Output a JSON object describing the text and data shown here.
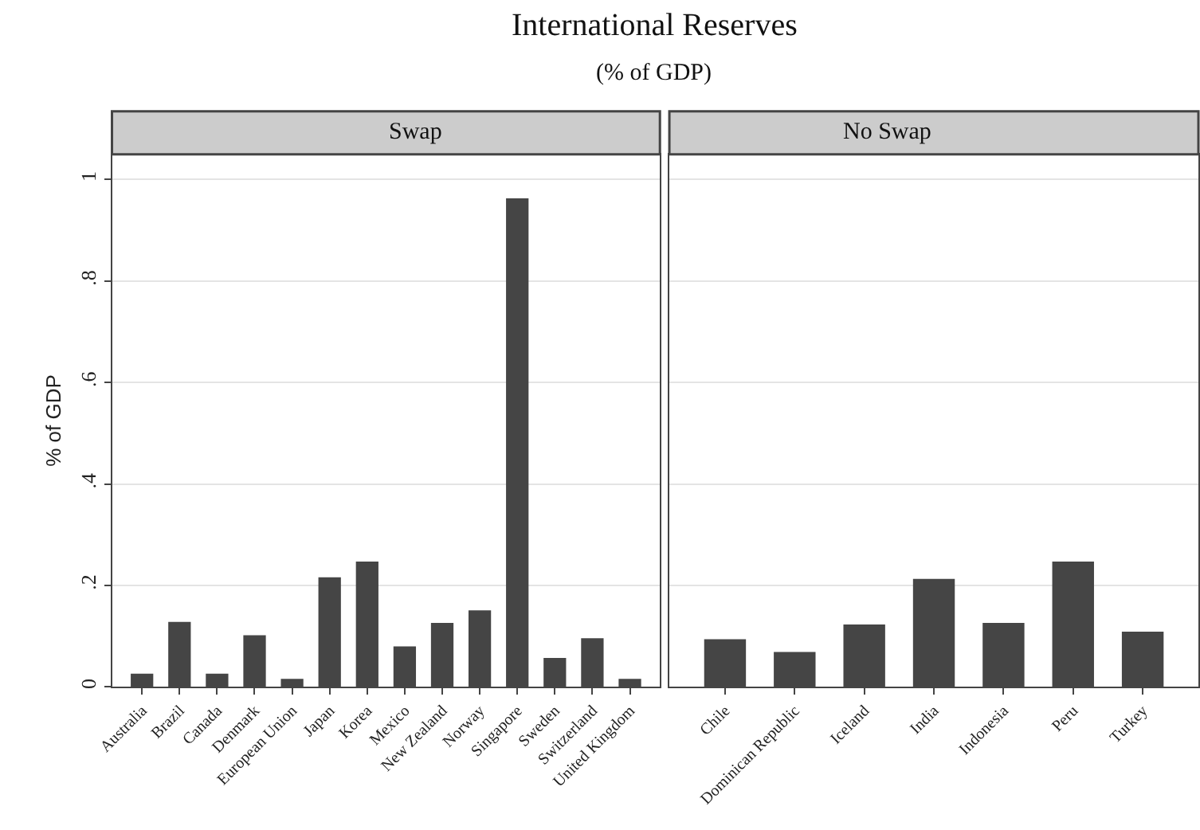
{
  "chart_data": [
    {
      "type": "bar",
      "title": "Swap",
      "ylabel": "% of GDP",
      "annotations": [
        "International Reserves",
        "(% of GDP)"
      ],
      "categories": [
        "Australia",
        "Brazil",
        "Canada",
        "Denmark",
        "European Union",
        "Japan",
        "Korea",
        "Mexico",
        "New Zealand",
        "Norway",
        "Singapore",
        "Sweden",
        "Switzerland",
        "United Kingdom"
      ],
      "values": [
        0.026,
        0.128,
        0.026,
        0.102,
        0.016,
        0.216,
        0.247,
        0.08,
        0.126,
        0.151,
        0.963,
        0.057,
        0.096,
        0.016
      ],
      "color": "#454545",
      "ylim": [
        0,
        1.05
      ],
      "yticks": [
        0,
        {
          "value": 0.2,
          "label": ".2"
        },
        {
          "value": 0.4,
          "label": ".4"
        },
        {
          "value": 0.6,
          "label": ".6"
        },
        {
          "value": 0.8,
          "label": ".8"
        },
        1
      ],
      "grid": "y"
    },
    {
      "type": "bar",
      "title": "No Swap",
      "categories": [
        "Chile",
        "Dominican Republic",
        "Iceland",
        "India",
        "Indonesia",
        "Peru",
        "Turkey"
      ],
      "values": [
        0.094,
        0.069,
        0.123,
        0.213,
        0.126,
        0.247,
        0.109
      ],
      "color": "#454545",
      "ylim": [
        0,
        1.05
      ],
      "yticks": [
        {
          "value": 0,
          "label": null
        },
        {
          "value": 0.2,
          "label": null
        },
        {
          "value": 0.4,
          "label": null
        },
        {
          "value": 0.6,
          "label": null
        },
        {
          "value": 0.8,
          "label": null
        },
        {
          "value": 1,
          "label": null
        }
      ],
      "grid": "y",
      "tick_labels": "x"
    }
  ]
}
